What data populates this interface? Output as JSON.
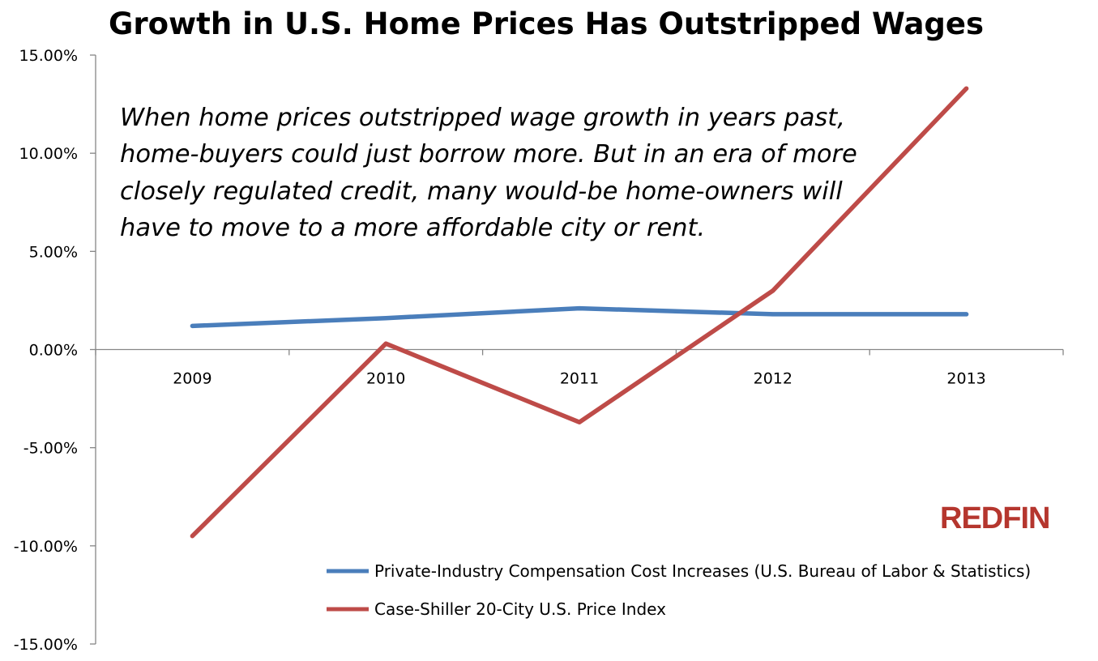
{
  "chart_data": {
    "type": "line",
    "title": "Growth in U.S. Home Prices Has Outstripped Wages",
    "categories": [
      "2009",
      "2010",
      "2011",
      "2012",
      "2013"
    ],
    "series": [
      {
        "name": "Private-Industry Compensation Cost Increases (U.S. Bureau of Labor & Statistics)",
        "color": "#4a7ebb",
        "values": [
          1.2,
          1.6,
          2.1,
          1.8,
          1.8
        ]
      },
      {
        "name": "Case-Shiller 20-City U.S. Price Index",
        "color": "#be4b48",
        "values": [
          -9.5,
          0.3,
          -3.7,
          3.0,
          13.3
        ]
      }
    ],
    "ylim": [
      -15,
      15
    ],
    "yticks": [
      15,
      10,
      5,
      0,
      -5,
      -10,
      -15
    ],
    "ytick_labels": [
      "15.00%",
      "10.00%",
      "5.00%",
      "0.00%",
      "-5.00%",
      "-10.00%",
      "-15.00%"
    ],
    "grid": false,
    "legend_position": "bottom-right",
    "annotation": [
      "When home prices outstripped wage growth in years past,",
      "home-buyers could just borrow more. But in an era of more",
      "closely regulated credit, many would-be home-owners will",
      "have to move to a more affordable city or rent."
    ],
    "logo": "REDFIN",
    "logo_color": "#b5362e"
  }
}
